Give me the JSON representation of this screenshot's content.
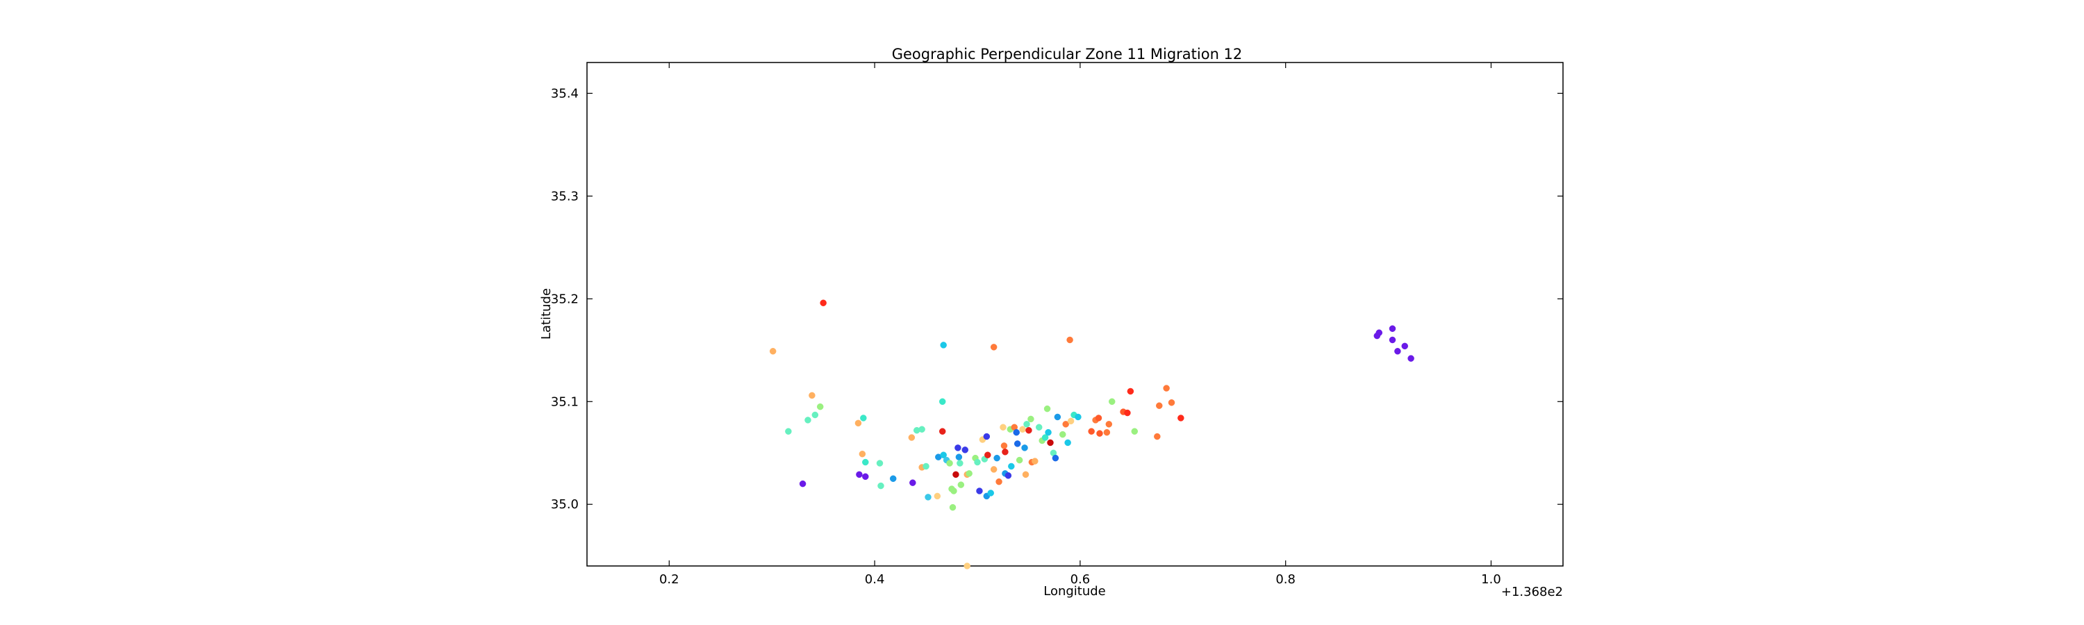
{
  "chart_data": {
    "type": "scatter",
    "title": "Geographic Perpendicular Zone 11 Migration 12",
    "xlabel": "Longitude",
    "ylabel": "Latitude",
    "x_offset_label": "+1.368e2",
    "xlim": [
      0.12,
      1.07
    ],
    "ylim": [
      34.94,
      35.43
    ],
    "xticks": [
      0.2,
      0.4,
      0.6,
      0.8,
      1.0
    ],
    "xtick_labels": [
      "0.2",
      "0.4",
      "0.6",
      "0.8",
      "1.0"
    ],
    "yticks": [
      35.0,
      35.1,
      35.2,
      35.3,
      35.4
    ],
    "ytick_labels": [
      "35.0",
      "35.1",
      "35.2",
      "35.3",
      "35.4"
    ],
    "grid": false,
    "legend": "none",
    "points": [
      {
        "x": 0.35,
        "y": 35.196,
        "color": "#ff2a1a"
      },
      {
        "x": 0.301,
        "y": 35.149,
        "color": "#ffb060"
      },
      {
        "x": 0.467,
        "y": 35.155,
        "color": "#1ac8e8"
      },
      {
        "x": 0.516,
        "y": 35.153,
        "color": "#ff7a3a"
      },
      {
        "x": 0.59,
        "y": 35.16,
        "color": "#ff7a3a"
      },
      {
        "x": 0.339,
        "y": 35.106,
        "color": "#ffb060"
      },
      {
        "x": 0.347,
        "y": 35.095,
        "color": "#9af080"
      },
      {
        "x": 0.342,
        "y": 35.087,
        "color": "#66f0c0"
      },
      {
        "x": 0.335,
        "y": 35.082,
        "color": "#66f0c0"
      },
      {
        "x": 0.316,
        "y": 35.071,
        "color": "#66f0c0"
      },
      {
        "x": 0.33,
        "y": 35.02,
        "color": "#6a1ae8"
      },
      {
        "x": 0.384,
        "y": 35.079,
        "color": "#ffb060"
      },
      {
        "x": 0.389,
        "y": 35.084,
        "color": "#3ae8c8"
      },
      {
        "x": 0.388,
        "y": 35.049,
        "color": "#ffb060"
      },
      {
        "x": 0.391,
        "y": 35.041,
        "color": "#3ae8c8"
      },
      {
        "x": 0.385,
        "y": 35.029,
        "color": "#6a1ae8"
      },
      {
        "x": 0.391,
        "y": 35.027,
        "color": "#6a1ae8"
      },
      {
        "x": 0.405,
        "y": 35.04,
        "color": "#66f0c0"
      },
      {
        "x": 0.406,
        "y": 35.018,
        "color": "#66f0c0"
      },
      {
        "x": 0.418,
        "y": 35.025,
        "color": "#1a9ae8"
      },
      {
        "x": 0.436,
        "y": 35.065,
        "color": "#ffb060"
      },
      {
        "x": 0.441,
        "y": 35.072,
        "color": "#66f0c0"
      },
      {
        "x": 0.446,
        "y": 35.073,
        "color": "#66f0c0"
      },
      {
        "x": 0.437,
        "y": 35.021,
        "color": "#6a1ae8"
      },
      {
        "x": 0.446,
        "y": 35.036,
        "color": "#ffb060"
      },
      {
        "x": 0.45,
        "y": 35.037,
        "color": "#66f0c0"
      },
      {
        "x": 0.452,
        "y": 35.007,
        "color": "#3ac8e8"
      },
      {
        "x": 0.461,
        "y": 35.008,
        "color": "#ffd080"
      },
      {
        "x": 0.466,
        "y": 35.1,
        "color": "#3ae8c8"
      },
      {
        "x": 0.466,
        "y": 35.071,
        "color": "#e8221a"
      },
      {
        "x": 0.462,
        "y": 35.046,
        "color": "#1a9ae8"
      },
      {
        "x": 0.467,
        "y": 35.048,
        "color": "#1ac8e8"
      },
      {
        "x": 0.47,
        "y": 35.043,
        "color": "#3ac8e8"
      },
      {
        "x": 0.473,
        "y": 35.04,
        "color": "#9af080"
      },
      {
        "x": 0.475,
        "y": 35.015,
        "color": "#9af080"
      },
      {
        "x": 0.477,
        "y": 35.013,
        "color": "#9af080"
      },
      {
        "x": 0.476,
        "y": 34.997,
        "color": "#9af080"
      },
      {
        "x": 0.479,
        "y": 35.029,
        "color": "#c80a0a"
      },
      {
        "x": 0.481,
        "y": 35.055,
        "color": "#3a3ae8"
      },
      {
        "x": 0.482,
        "y": 35.046,
        "color": "#1a9ae8"
      },
      {
        "x": 0.483,
        "y": 35.04,
        "color": "#66f0c0"
      },
      {
        "x": 0.484,
        "y": 35.019,
        "color": "#9af080"
      },
      {
        "x": 0.488,
        "y": 35.053,
        "color": "#3a3ae8"
      },
      {
        "x": 0.49,
        "y": 35.029,
        "color": "#ffb060"
      },
      {
        "x": 0.492,
        "y": 35.03,
        "color": "#9af080"
      },
      {
        "x": 0.49,
        "y": 34.94,
        "color": "#ffd080"
      },
      {
        "x": 0.498,
        "y": 35.045,
        "color": "#9af080"
      },
      {
        "x": 0.5,
        "y": 35.041,
        "color": "#66f0c0"
      },
      {
        "x": 0.502,
        "y": 35.013,
        "color": "#3a3ae8"
      },
      {
        "x": 0.505,
        "y": 35.063,
        "color": "#ffd080"
      },
      {
        "x": 0.509,
        "y": 35.066,
        "color": "#3a3ae8"
      },
      {
        "x": 0.507,
        "y": 35.044,
        "color": "#66f0c0"
      },
      {
        "x": 0.51,
        "y": 35.048,
        "color": "#e8221a"
      },
      {
        "x": 0.509,
        "y": 35.008,
        "color": "#1a9ae8"
      },
      {
        "x": 0.513,
        "y": 35.011,
        "color": "#1ac8e8"
      },
      {
        "x": 0.516,
        "y": 35.034,
        "color": "#ffb060"
      },
      {
        "x": 0.519,
        "y": 35.045,
        "color": "#1a9ae8"
      },
      {
        "x": 0.521,
        "y": 35.022,
        "color": "#ff7a3a"
      },
      {
        "x": 0.525,
        "y": 35.075,
        "color": "#ffd080"
      },
      {
        "x": 0.526,
        "y": 35.057,
        "color": "#ff7a3a"
      },
      {
        "x": 0.527,
        "y": 35.051,
        "color": "#e8221a"
      },
      {
        "x": 0.527,
        "y": 35.03,
        "color": "#1a9ae8"
      },
      {
        "x": 0.53,
        "y": 35.028,
        "color": "#3a3ae8"
      },
      {
        "x": 0.532,
        "y": 35.073,
        "color": "#9af080"
      },
      {
        "x": 0.533,
        "y": 35.037,
        "color": "#1ac8e8"
      },
      {
        "x": 0.536,
        "y": 35.075,
        "color": "#ff7a3a"
      },
      {
        "x": 0.538,
        "y": 35.07,
        "color": "#1a6ae8"
      },
      {
        "x": 0.539,
        "y": 35.059,
        "color": "#1a6ae8"
      },
      {
        "x": 0.541,
        "y": 35.043,
        "color": "#9af080"
      },
      {
        "x": 0.544,
        "y": 35.073,
        "color": "#ffd080"
      },
      {
        "x": 0.546,
        "y": 35.055,
        "color": "#1a9ae8"
      },
      {
        "x": 0.547,
        "y": 35.029,
        "color": "#ffb060"
      },
      {
        "x": 0.548,
        "y": 35.078,
        "color": "#66f0c0"
      },
      {
        "x": 0.55,
        "y": 35.072,
        "color": "#e8221a"
      },
      {
        "x": 0.552,
        "y": 35.083,
        "color": "#9af080"
      },
      {
        "x": 0.553,
        "y": 35.041,
        "color": "#ff7a3a"
      },
      {
        "x": 0.556,
        "y": 35.042,
        "color": "#ffb060"
      },
      {
        "x": 0.56,
        "y": 35.075,
        "color": "#66f0c0"
      },
      {
        "x": 0.563,
        "y": 35.062,
        "color": "#9af080"
      },
      {
        "x": 0.566,
        "y": 35.065,
        "color": "#3ae8c8"
      },
      {
        "x": 0.568,
        "y": 35.093,
        "color": "#9af080"
      },
      {
        "x": 0.569,
        "y": 35.07,
        "color": "#1ac8e8"
      },
      {
        "x": 0.571,
        "y": 35.06,
        "color": "#c80a0a"
      },
      {
        "x": 0.574,
        "y": 35.05,
        "color": "#66f0c0"
      },
      {
        "x": 0.576,
        "y": 35.045,
        "color": "#1a6ae8"
      },
      {
        "x": 0.578,
        "y": 35.085,
        "color": "#1a9ae8"
      },
      {
        "x": 0.583,
        "y": 35.068,
        "color": "#9af080"
      },
      {
        "x": 0.586,
        "y": 35.078,
        "color": "#ff7a3a"
      },
      {
        "x": 0.588,
        "y": 35.06,
        "color": "#1ac8e8"
      },
      {
        "x": 0.591,
        "y": 35.081,
        "color": "#ffd080"
      },
      {
        "x": 0.594,
        "y": 35.087,
        "color": "#3ae8c8"
      },
      {
        "x": 0.598,
        "y": 35.085,
        "color": "#1ac8e8"
      },
      {
        "x": 0.611,
        "y": 35.071,
        "color": "#ff5a2a"
      },
      {
        "x": 0.615,
        "y": 35.082,
        "color": "#ff7a3a"
      },
      {
        "x": 0.618,
        "y": 35.084,
        "color": "#ff5a2a"
      },
      {
        "x": 0.619,
        "y": 35.069,
        "color": "#ff5a2a"
      },
      {
        "x": 0.626,
        "y": 35.07,
        "color": "#ff7a3a"
      },
      {
        "x": 0.628,
        "y": 35.078,
        "color": "#ff7a3a"
      },
      {
        "x": 0.631,
        "y": 35.1,
        "color": "#9af080"
      },
      {
        "x": 0.642,
        "y": 35.09,
        "color": "#ff5a2a"
      },
      {
        "x": 0.646,
        "y": 35.089,
        "color": "#ff2a1a"
      },
      {
        "x": 0.649,
        "y": 35.11,
        "color": "#ff2a1a"
      },
      {
        "x": 0.653,
        "y": 35.071,
        "color": "#9af080"
      },
      {
        "x": 0.675,
        "y": 35.066,
        "color": "#ff7a3a"
      },
      {
        "x": 0.677,
        "y": 35.096,
        "color": "#ff7a3a"
      },
      {
        "x": 0.684,
        "y": 35.113,
        "color": "#ff7a3a"
      },
      {
        "x": 0.689,
        "y": 35.099,
        "color": "#ff7a3a"
      },
      {
        "x": 0.698,
        "y": 35.084,
        "color": "#ff2a1a"
      },
      {
        "x": 0.889,
        "y": 35.164,
        "color": "#6a1ae8"
      },
      {
        "x": 0.891,
        "y": 35.167,
        "color": "#6a1ae8"
      },
      {
        "x": 0.904,
        "y": 35.171,
        "color": "#6a1ae8"
      },
      {
        "x": 0.904,
        "y": 35.16,
        "color": "#6a1ae8"
      },
      {
        "x": 0.909,
        "y": 35.149,
        "color": "#6a1ae8"
      },
      {
        "x": 0.916,
        "y": 35.154,
        "color": "#6a1ae8"
      },
      {
        "x": 0.922,
        "y": 35.142,
        "color": "#6a1ae8"
      }
    ]
  }
}
